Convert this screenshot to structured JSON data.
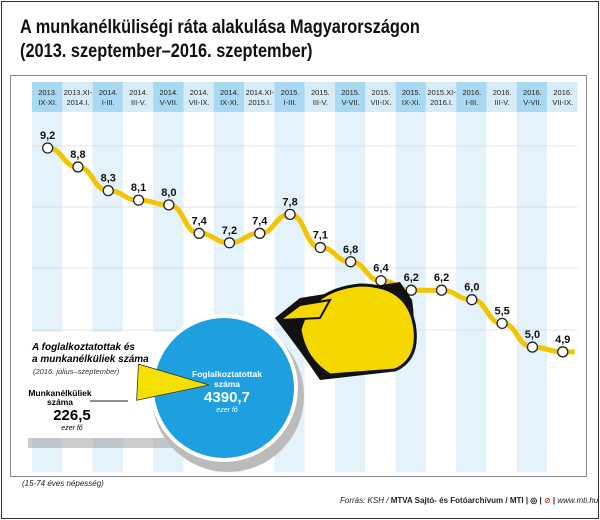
{
  "title": "A munkanélküliségi ráta alakulása Magyarországon",
  "subtitle": "(2013. szeptember–2016. szeptember)",
  "chart_data": [
    {
      "type": "line",
      "categories": [
        [
          "2013.",
          "IX-XI."
        ],
        [
          "2013.XI-",
          "2014.I."
        ],
        [
          "2014.",
          "I-III."
        ],
        [
          "2014.",
          "III-V."
        ],
        [
          "2014.",
          "V-VII."
        ],
        [
          "2014.",
          "VII-IX."
        ],
        [
          "2014.",
          "IX-XI."
        ],
        [
          "2014.XI-",
          "2015.I."
        ],
        [
          "2015.",
          "I-III."
        ],
        [
          "2015.",
          "III-V."
        ],
        [
          "2015.",
          "V-VII."
        ],
        [
          "2015.",
          "VII-IX."
        ],
        [
          "2015.",
          "IX-XI."
        ],
        [
          "2015.XI-",
          "2016.I."
        ],
        [
          "2016.",
          "I-III."
        ],
        [
          "2016.",
          "III-V."
        ],
        [
          "2016.",
          "V-VII."
        ],
        [
          "2016.",
          "VII-IX."
        ]
      ],
      "values": [
        9.2,
        8.8,
        8.3,
        8.1,
        8.0,
        7.4,
        7.2,
        7.4,
        7.8,
        7.1,
        6.8,
        6.4,
        6.2,
        6.2,
        6.0,
        5.5,
        5.0,
        4.9
      ],
      "labels": [
        "9,2",
        "8,8",
        "8,3",
        "8,1",
        "8,0",
        "7,4",
        "7,2",
        "7,4",
        "7,8",
        "7,1",
        "6,8",
        "6,4",
        "6,2",
        "6,2",
        "6,0",
        "5,5",
        "5,0",
        "4,9"
      ],
      "line_color": "#f5c400"
    },
    {
      "type": "pie",
      "title": "A foglalkoztatottak és a munkanélküliek száma",
      "subtitle": "(2016. július–szeptember)",
      "slices": [
        {
          "name": "Foglalkoztatottak száma",
          "value": 4390.7,
          "label": "4390,7",
          "unit": "ezer fő",
          "color": "#1ea0e0"
        },
        {
          "name": "Munkanélküliek száma",
          "value": 226.5,
          "label": "226,5",
          "unit": "ezer fő",
          "color": "#f5e000"
        }
      ]
    }
  ],
  "note": "(15-74 éves népesség)",
  "source_prefix": "Forrás: KSH / ",
  "source_bold": "MTVA Sajtó- és Fotóarchívum / MTI",
  "website": "www.mti.hu",
  "logo_text": "MTVA"
}
